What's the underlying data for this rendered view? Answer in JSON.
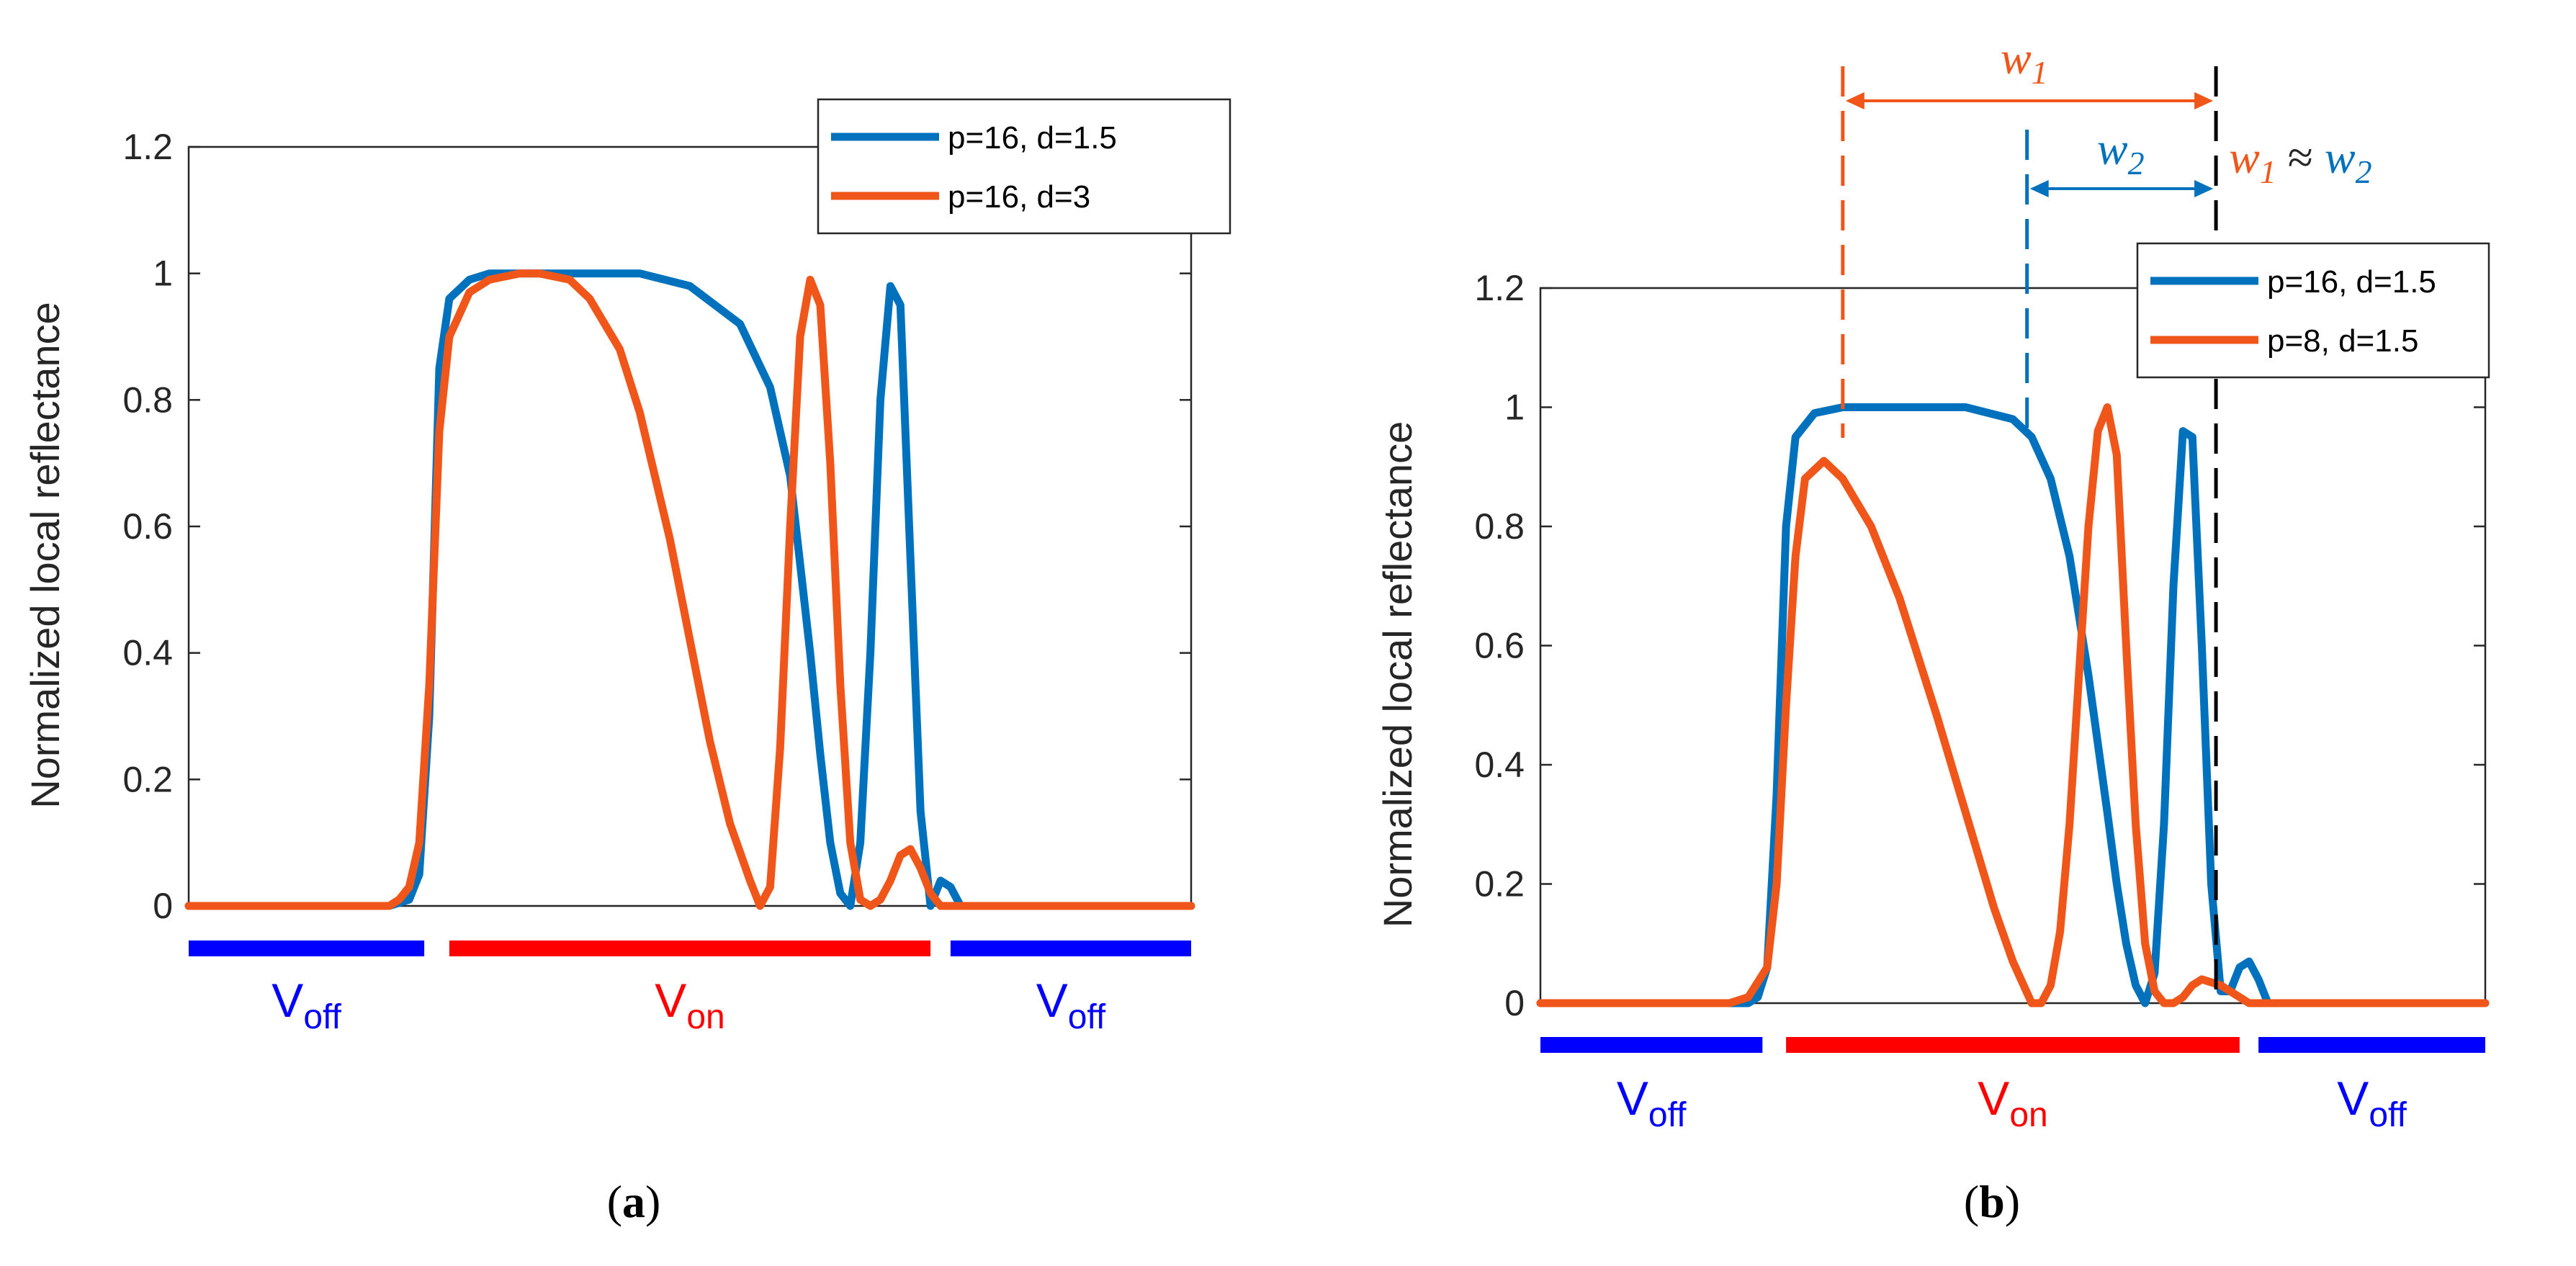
{
  "colors": {
    "blue": "#0072BD",
    "orange": "#F0561A",
    "bar_blue": "#0000FF",
    "bar_red": "#FF0000",
    "axis": "#262626"
  },
  "chart_data": [
    {
      "type": "line",
      "panel_label": "(a)",
      "ylabel": "Normalized local reflectance",
      "ylim": [
        0,
        1.2
      ],
      "yticks": [
        "0",
        "0.2",
        "0.4",
        "0.6",
        "0.8",
        "1",
        "1.2"
      ],
      "xlim": [
        0,
        100
      ],
      "grid": false,
      "legend_position": "top-right",
      "series": [
        {
          "name": "p=16, d=1.5",
          "color": "#0072BD",
          "x": [
            0,
            20,
            22,
            23,
            24,
            25,
            26,
            28,
            30,
            35,
            40,
            45,
            50,
            55,
            58,
            60,
            62,
            63,
            64,
            65,
            66,
            67,
            68,
            69,
            70,
            71,
            72,
            73,
            74,
            75,
            76,
            77,
            78,
            80,
            85,
            90,
            100
          ],
          "y": [
            0,
            0,
            0.01,
            0.05,
            0.3,
            0.85,
            0.96,
            0.99,
            1,
            1,
            1,
            1,
            0.98,
            0.92,
            0.82,
            0.68,
            0.4,
            0.24,
            0.1,
            0.02,
            0,
            0.1,
            0.4,
            0.8,
            0.98,
            0.95,
            0.55,
            0.15,
            0,
            0.04,
            0.03,
            0,
            0,
            0,
            0,
            0,
            0
          ]
        },
        {
          "name": "p=16, d=3",
          "color": "#F0561A",
          "x": [
            0,
            20,
            21,
            22,
            23,
            24,
            25,
            26,
            28,
            30,
            33,
            35,
            38,
            40,
            43,
            45,
            48,
            50,
            52,
            54,
            56,
            57,
            58,
            59,
            60,
            61,
            62,
            63,
            64,
            65,
            66,
            67,
            68,
            69,
            70,
            71,
            72,
            73,
            74,
            75,
            77,
            80,
            90,
            100
          ],
          "y": [
            0,
            0,
            0.01,
            0.03,
            0.1,
            0.35,
            0.75,
            0.9,
            0.97,
            0.99,
            1,
            1,
            0.99,
            0.96,
            0.88,
            0.78,
            0.58,
            0.42,
            0.26,
            0.13,
            0.04,
            0,
            0.03,
            0.25,
            0.6,
            0.9,
            0.99,
            0.95,
            0.7,
            0.35,
            0.1,
            0.01,
            0,
            0.01,
            0.04,
            0.08,
            0.09,
            0.06,
            0.02,
            0,
            0,
            0,
            0,
            0
          ]
        }
      ],
      "bars": [
        {
          "label": "V",
          "sub": "off",
          "color": "#0000FF",
          "from": 0,
          "to": 23.5
        },
        {
          "label": "V",
          "sub": "on",
          "color": "#FF0000",
          "from": 26,
          "to": 74
        },
        {
          "label": "V",
          "sub": "off",
          "color": "#0000FF",
          "from": 76,
          "to": 100
        }
      ]
    },
    {
      "type": "line",
      "panel_label": "(b)",
      "ylabel": "Normalized local reflectance",
      "ylim": [
        0,
        1.2
      ],
      "yticks": [
        "0",
        "0.2",
        "0.4",
        "0.6",
        "0.8",
        "1",
        "1.2"
      ],
      "xlim": [
        0,
        100
      ],
      "grid": false,
      "legend_position": "top-right",
      "series": [
        {
          "name": "p=16, d=1.5",
          "color": "#0072BD",
          "x": [
            0,
            22,
            23,
            24,
            25,
            26,
            27,
            29,
            32,
            35,
            40,
            45,
            50,
            52,
            54,
            56,
            58,
            60,
            61,
            62,
            63,
            64,
            65,
            66,
            67,
            68,
            69,
            70,
            71,
            72,
            73,
            74,
            75,
            76,
            77,
            78,
            80,
            90,
            100
          ],
          "y": [
            0,
            0,
            0.01,
            0.06,
            0.35,
            0.8,
            0.95,
            0.99,
            1,
            1,
            1,
            1,
            0.98,
            0.95,
            0.88,
            0.75,
            0.55,
            0.32,
            0.2,
            0.1,
            0.03,
            0,
            0.05,
            0.3,
            0.7,
            0.96,
            0.95,
            0.6,
            0.2,
            0.02,
            0.02,
            0.06,
            0.07,
            0.04,
            0,
            0,
            0,
            0,
            0
          ]
        },
        {
          "name": "p=8, d=1.5",
          "color": "#F0561A",
          "x": [
            0,
            20,
            22,
            24,
            25,
            26,
            27,
            28,
            30,
            32,
            35,
            38,
            40,
            42,
            45,
            48,
            50,
            52,
            53,
            54,
            55,
            56,
            57,
            58,
            59,
            60,
            61,
            62,
            63,
            64,
            65,
            66,
            67,
            68,
            69,
            70,
            72,
            74,
            75,
            76,
            78,
            80,
            100
          ],
          "y": [
            0,
            0,
            0.01,
            0.06,
            0.2,
            0.5,
            0.75,
            0.88,
            0.91,
            0.88,
            0.8,
            0.68,
            0.58,
            0.48,
            0.32,
            0.16,
            0.07,
            0,
            0,
            0.03,
            0.12,
            0.3,
            0.55,
            0.8,
            0.96,
            1,
            0.92,
            0.6,
            0.3,
            0.1,
            0.02,
            0,
            0,
            0.01,
            0.03,
            0.04,
            0.03,
            0.01,
            0,
            0,
            0,
            0,
            0
          ]
        }
      ],
      "bars": [
        {
          "label": "V",
          "sub": "off",
          "color": "#0000FF",
          "from": 0,
          "to": 23.5
        },
        {
          "label": "V",
          "sub": "on",
          "color": "#FF0000",
          "from": 26,
          "to": 74
        },
        {
          "label": "V",
          "sub": "off",
          "color": "#0000FF",
          "from": 76,
          "to": 100
        }
      ],
      "annotations": {
        "w1": {
          "base": "w",
          "sub": "1",
          "color": "#F0561A"
        },
        "w2": {
          "base": "w",
          "sub": "2",
          "color": "#0072BD"
        },
        "approx": "≈",
        "markers_x": {
          "orange_dash": 32,
          "blue_dash": 51.5,
          "black_dash": 71.5
        }
      }
    }
  ]
}
